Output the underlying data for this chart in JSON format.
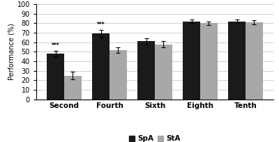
{
  "categories": [
    "Second",
    "Fourth",
    "Sixth",
    "Eighth",
    "Tenth"
  ],
  "SpA_values": [
    48,
    69,
    61,
    82,
    82
  ],
  "StA_values": [
    25,
    52,
    58,
    80,
    81
  ],
  "SpA_errors": [
    3,
    4,
    3,
    2,
    2
  ],
  "StA_errors": [
    4,
    3,
    3,
    2,
    2
  ],
  "SpA_color": "#1a1a1a",
  "StA_color": "#a8a8a8",
  "ylabel": "Performance (%)",
  "ylim": [
    0,
    100
  ],
  "yticks": [
    0,
    10,
    20,
    30,
    40,
    50,
    60,
    70,
    80,
    90,
    100
  ],
  "bar_width": 0.38,
  "significance": [
    true,
    true,
    false,
    false,
    false
  ],
  "sig_label": "***",
  "legend_labels": [
    "SpA",
    "StA"
  ],
  "background_color": "#ffffff",
  "grid_color": "#d0d0d0"
}
